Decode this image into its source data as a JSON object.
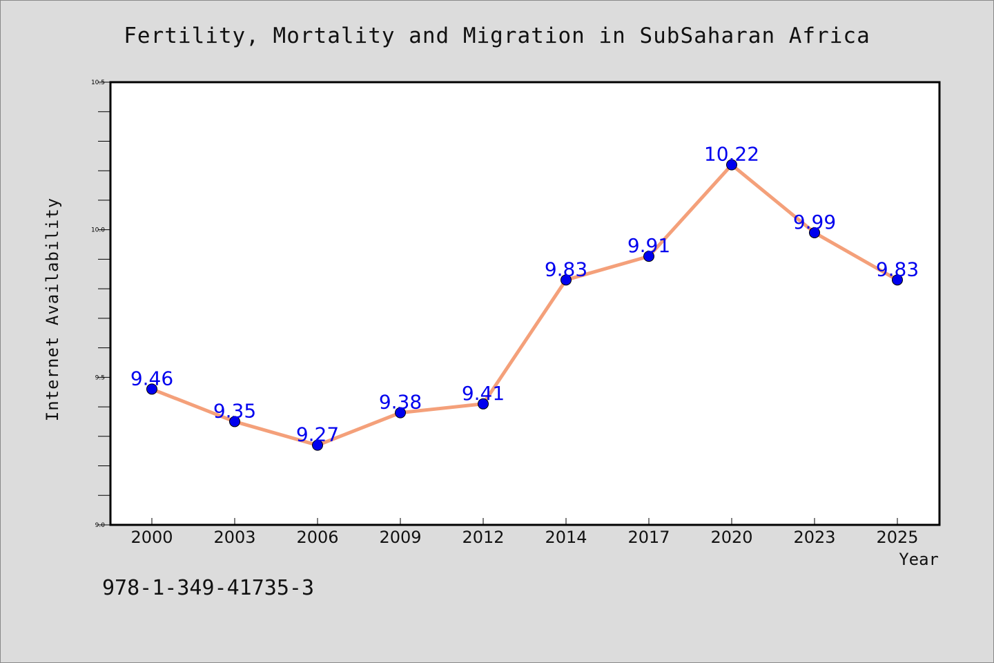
{
  "chart_data": {
    "type": "line",
    "title": "Fertility, Mortality and Migration in SubSaharan Africa",
    "xlabel": "Year",
    "ylabel": "Internet Availability",
    "categories": [
      "2000",
      "2003",
      "2006",
      "2009",
      "2012",
      "2014",
      "2017",
      "2020",
      "2023",
      "2025"
    ],
    "series": [
      {
        "values": [
          9.46,
          9.35,
          9.27,
          9.38,
          9.41,
          9.83,
          9.91,
          10.22,
          9.99,
          9.83
        ],
        "data_labels": [
          "9.46",
          "9.35",
          "9.27",
          "9.38",
          "9.41",
          "9.83",
          "9.91",
          "10.22",
          "9.99",
          "9.83"
        ]
      }
    ],
    "ylim": [
      9.0,
      10.5
    ],
    "yticks": [
      "9.0",
      "9.5",
      "10.0",
      "10.5"
    ],
    "grid": false,
    "colors": {
      "line": "#f4a07a",
      "marker": "#0000ee",
      "data_label": "#0000ee",
      "background": "#dcdcdc",
      "plot_background": "#ffffff"
    }
  },
  "watermark_text": "978-1-349-41735-3"
}
